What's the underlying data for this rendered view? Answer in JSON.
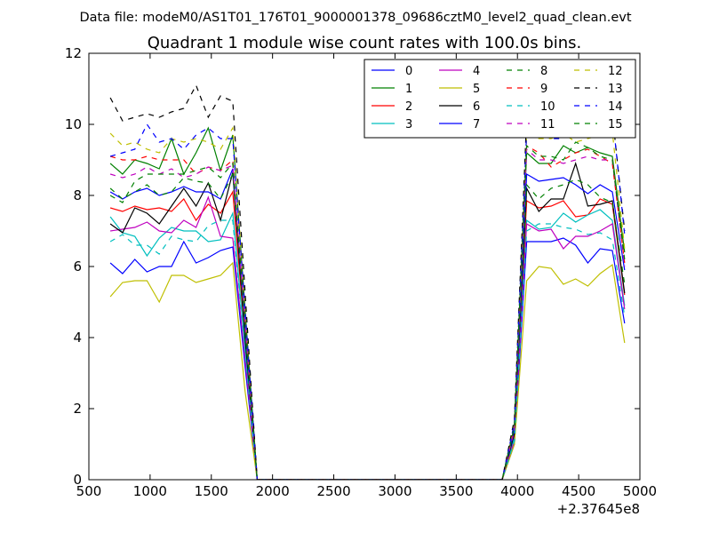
{
  "chart_data": {
    "type": "line",
    "suptitle": "Data file: modeM0/AS1T01_176T01_9000001378_09686cztM0_level2_quad_clean.evt",
    "title": "Quadrant 1 module wise count rates with 100.0s bins.",
    "xlabel": "",
    "ylabel": "",
    "x_offset_label": "+2.37645e8",
    "xlim": [
      500,
      5000
    ],
    "ylim": [
      0,
      12
    ],
    "xticks": [
      500,
      1000,
      1500,
      2000,
      2500,
      3000,
      3500,
      4000,
      4500,
      5000
    ],
    "yticks": [
      0,
      2,
      4,
      6,
      8,
      10,
      12
    ],
    "grid": false,
    "legend_position": "top-right",
    "x": [
      675,
      775,
      875,
      975,
      1075,
      1175,
      1275,
      1375,
      1475,
      1575,
      1675,
      1775,
      1875,
      1975,
      2075,
      2175,
      2275,
      2375,
      2475,
      2575,
      2675,
      2775,
      2875,
      2975,
      3075,
      3175,
      3275,
      3375,
      3475,
      3575,
      3675,
      3775,
      3875,
      3975,
      4075,
      4175,
      4275,
      4375,
      4475,
      4575,
      4675,
      4775,
      4875
    ],
    "series": [
      {
        "name": "0",
        "color": "#0000ff",
        "dash": "solid",
        "values": [
          6.1,
          5.8,
          6.2,
          5.85,
          6.0,
          6.0,
          6.7,
          6.1,
          6.25,
          6.45,
          6.55,
          3.2,
          0,
          0,
          0,
          0,
          0,
          0,
          0,
          0,
          0,
          0,
          0,
          0,
          0,
          0,
          0,
          0,
          0,
          0,
          0,
          0,
          0,
          1.0,
          6.7,
          6.7,
          6.7,
          6.8,
          6.6,
          6.1,
          6.5,
          6.45,
          4.4
        ]
      },
      {
        "name": "1",
        "color": "#008000",
        "dash": "solid",
        "values": [
          8.9,
          8.6,
          9.0,
          8.9,
          8.75,
          9.6,
          8.6,
          9.2,
          9.9,
          8.7,
          9.7,
          4.8,
          0,
          0,
          0,
          0,
          0,
          0,
          0,
          0,
          0,
          0,
          0,
          0,
          0,
          0,
          0,
          0,
          0,
          0,
          0,
          0,
          0,
          1.5,
          9.2,
          8.9,
          8.9,
          9.4,
          9.2,
          9.35,
          9.2,
          9.1,
          6.4
        ]
      },
      {
        "name": "2",
        "color": "#ff0000",
        "dash": "solid",
        "values": [
          7.65,
          7.55,
          7.7,
          7.6,
          7.65,
          7.55,
          7.9,
          7.3,
          7.75,
          7.5,
          8.1,
          4.0,
          0,
          0,
          0,
          0,
          0,
          0,
          0,
          0,
          0,
          0,
          0,
          0,
          0,
          0,
          0,
          0,
          0,
          0,
          0,
          0,
          0,
          1.3,
          7.85,
          7.65,
          7.7,
          7.85,
          7.4,
          7.45,
          7.9,
          7.75,
          5.2
        ]
      },
      {
        "name": "3",
        "color": "#00bfbf",
        "dash": "solid",
        "values": [
          7.4,
          6.95,
          6.85,
          6.3,
          6.8,
          7.1,
          7.0,
          7.0,
          6.7,
          6.75,
          7.5,
          3.7,
          0,
          0,
          0,
          0,
          0,
          0,
          0,
          0,
          0,
          0,
          0,
          0,
          0,
          0,
          0,
          0,
          0,
          0,
          0,
          0,
          0,
          1.2,
          7.3,
          7.05,
          7.1,
          7.5,
          7.25,
          7.45,
          7.6,
          7.3,
          4.9
        ]
      },
      {
        "name": "4",
        "color": "#bf00bf",
        "dash": "solid",
        "values": [
          7.0,
          7.05,
          7.1,
          7.25,
          7.0,
          6.95,
          7.3,
          7.1,
          7.95,
          6.85,
          6.8,
          3.4,
          0,
          0,
          0,
          0,
          0,
          0,
          0,
          0,
          0,
          0,
          0,
          0,
          0,
          0,
          0,
          0,
          0,
          0,
          0,
          0,
          0,
          1.1,
          7.2,
          7.0,
          7.05,
          6.5,
          6.85,
          6.85,
          7.0,
          7.2,
          4.8
        ]
      },
      {
        "name": "5",
        "color": "#bfbf00",
        "dash": "solid",
        "values": [
          5.15,
          5.55,
          5.6,
          5.6,
          5.0,
          5.75,
          5.75,
          5.55,
          5.65,
          5.75,
          6.1,
          2.5,
          0,
          0,
          0,
          0,
          0,
          0,
          0,
          0,
          0,
          0,
          0,
          0,
          0,
          0,
          0,
          0,
          0,
          0,
          0,
          0,
          0,
          1.0,
          5.6,
          6.0,
          5.95,
          5.5,
          5.65,
          5.45,
          5.8,
          6.05,
          3.85
        ]
      },
      {
        "name": "6",
        "color": "#000000",
        "dash": "solid",
        "values": [
          7.2,
          6.95,
          7.65,
          7.5,
          7.2,
          7.7,
          8.2,
          7.7,
          8.35,
          7.3,
          8.65,
          4.0,
          0,
          0,
          0,
          0,
          0,
          0,
          0,
          0,
          0,
          0,
          0,
          0,
          0,
          0,
          0,
          0,
          0,
          0,
          0,
          0,
          0,
          1.3,
          8.2,
          7.55,
          7.9,
          7.9,
          8.9,
          7.7,
          7.75,
          7.85,
          5.25
        ]
      },
      {
        "name": "7",
        "color": "#0000ff",
        "dash": "solid",
        "values": [
          8.1,
          7.9,
          8.1,
          8.2,
          8.0,
          8.1,
          8.25,
          8.1,
          8.1,
          7.9,
          8.75,
          4.3,
          0,
          0,
          0,
          0,
          0,
          0,
          0,
          0,
          0,
          0,
          0,
          0,
          0,
          0,
          0,
          0,
          0,
          0,
          0,
          0,
          0,
          1.4,
          8.6,
          8.4,
          8.45,
          8.5,
          8.3,
          8.05,
          8.3,
          8.1,
          5.9
        ]
      },
      {
        "name": "8",
        "color": "#008000",
        "dash": "dashed",
        "values": [
          8.2,
          7.9,
          8.1,
          8.3,
          8.0,
          8.1,
          8.5,
          8.4,
          8.35,
          7.9,
          8.6,
          4.2,
          0,
          0,
          0,
          0,
          0,
          0,
          0,
          0,
          0,
          0,
          0,
          0,
          0,
          0,
          0,
          0,
          0,
          0,
          0,
          0,
          0,
          1.4,
          8.3,
          7.9,
          8.2,
          8.3,
          8.45,
          8.3,
          7.95,
          7.8,
          5.5
        ]
      },
      {
        "name": "9",
        "color": "#ff0000",
        "dash": "dashed",
        "values": [
          9.1,
          9.0,
          9.0,
          9.1,
          9.0,
          9.0,
          9.0,
          8.6,
          8.8,
          8.7,
          9.0,
          4.5,
          0,
          0,
          0,
          0,
          0,
          0,
          0,
          0,
          0,
          0,
          0,
          0,
          0,
          0,
          0,
          0,
          0,
          0,
          0,
          0,
          0,
          1.5,
          9.4,
          9.2,
          8.8,
          9.0,
          9.2,
          9.3,
          9.1,
          8.9,
          6.1
        ]
      },
      {
        "name": "10",
        "color": "#00bfbf",
        "dash": "dashed",
        "values": [
          6.7,
          6.9,
          6.6,
          6.6,
          6.35,
          6.85,
          6.75,
          6.7,
          7.15,
          7.3,
          7.3,
          3.6,
          0,
          0,
          0,
          0,
          0,
          0,
          0,
          0,
          0,
          0,
          0,
          0,
          0,
          0,
          0,
          0,
          0,
          0,
          0,
          0,
          0,
          1.1,
          7.0,
          7.2,
          7.2,
          7.1,
          7.05,
          6.9,
          6.95,
          6.75,
          4.6
        ]
      },
      {
        "name": "11",
        "color": "#bf00bf",
        "dash": "dashed",
        "values": [
          8.6,
          8.5,
          8.6,
          8.8,
          8.6,
          8.75,
          8.5,
          8.6,
          8.8,
          8.7,
          8.85,
          4.4,
          0,
          0,
          0,
          0,
          0,
          0,
          0,
          0,
          0,
          0,
          0,
          0,
          0,
          0,
          0,
          0,
          0,
          0,
          0,
          0,
          0,
          1.4,
          9.3,
          9.0,
          9.0,
          8.9,
          9.0,
          9.1,
          9.0,
          9.0,
          6.0
        ]
      },
      {
        "name": "12",
        "color": "#bfbf00",
        "dash": "dashed",
        "values": [
          9.75,
          9.4,
          9.5,
          9.3,
          9.2,
          9.6,
          9.5,
          9.6,
          9.5,
          9.3,
          9.9,
          4.9,
          0,
          0,
          0,
          0,
          0,
          0,
          0,
          0,
          0,
          0,
          0,
          0,
          0,
          0,
          0,
          0,
          0,
          0,
          0,
          0,
          0,
          1.6,
          9.7,
          9.6,
          9.6,
          9.75,
          9.5,
          9.6,
          9.7,
          9.8,
          6.5
        ]
      },
      {
        "name": "13",
        "color": "#000000",
        "dash": "dashed",
        "values": [
          10.75,
          10.1,
          10.2,
          10.3,
          10.2,
          10.35,
          10.45,
          11.1,
          10.2,
          10.8,
          10.65,
          5.3,
          0,
          0,
          0,
          0,
          0,
          0,
          0,
          0,
          0,
          0,
          0,
          0,
          0,
          0,
          0,
          0,
          0,
          0,
          0,
          0,
          0,
          1.7,
          10.2,
          10.3,
          10.1,
          10.0,
          10.2,
          10.1,
          10.2,
          10.3,
          7.0
        ]
      },
      {
        "name": "14",
        "color": "#0000ff",
        "dash": "dashed",
        "values": [
          9.1,
          9.2,
          9.3,
          10.0,
          9.5,
          9.6,
          9.3,
          9.7,
          9.9,
          9.6,
          9.6,
          4.8,
          0,
          0,
          0,
          0,
          0,
          0,
          0,
          0,
          0,
          0,
          0,
          0,
          0,
          0,
          0,
          0,
          0,
          0,
          0,
          0,
          0,
          1.6,
          9.8,
          9.7,
          9.6,
          9.6,
          10.3,
          10.4,
          10.2,
          10.3,
          6.9
        ]
      },
      {
        "name": "15",
        "color": "#008000",
        "dash": "dashed",
        "values": [
          8.0,
          7.8,
          8.4,
          8.6,
          8.6,
          8.6,
          8.6,
          8.7,
          8.8,
          8.5,
          8.9,
          4.4,
          0,
          0,
          0,
          0,
          0,
          0,
          0,
          0,
          0,
          0,
          0,
          0,
          0,
          0,
          0,
          0,
          0,
          0,
          0,
          0,
          0,
          1.5,
          9.4,
          9.1,
          9.1,
          9.0,
          9.5,
          9.35,
          9.1,
          9.0,
          6.2
        ]
      }
    ]
  }
}
